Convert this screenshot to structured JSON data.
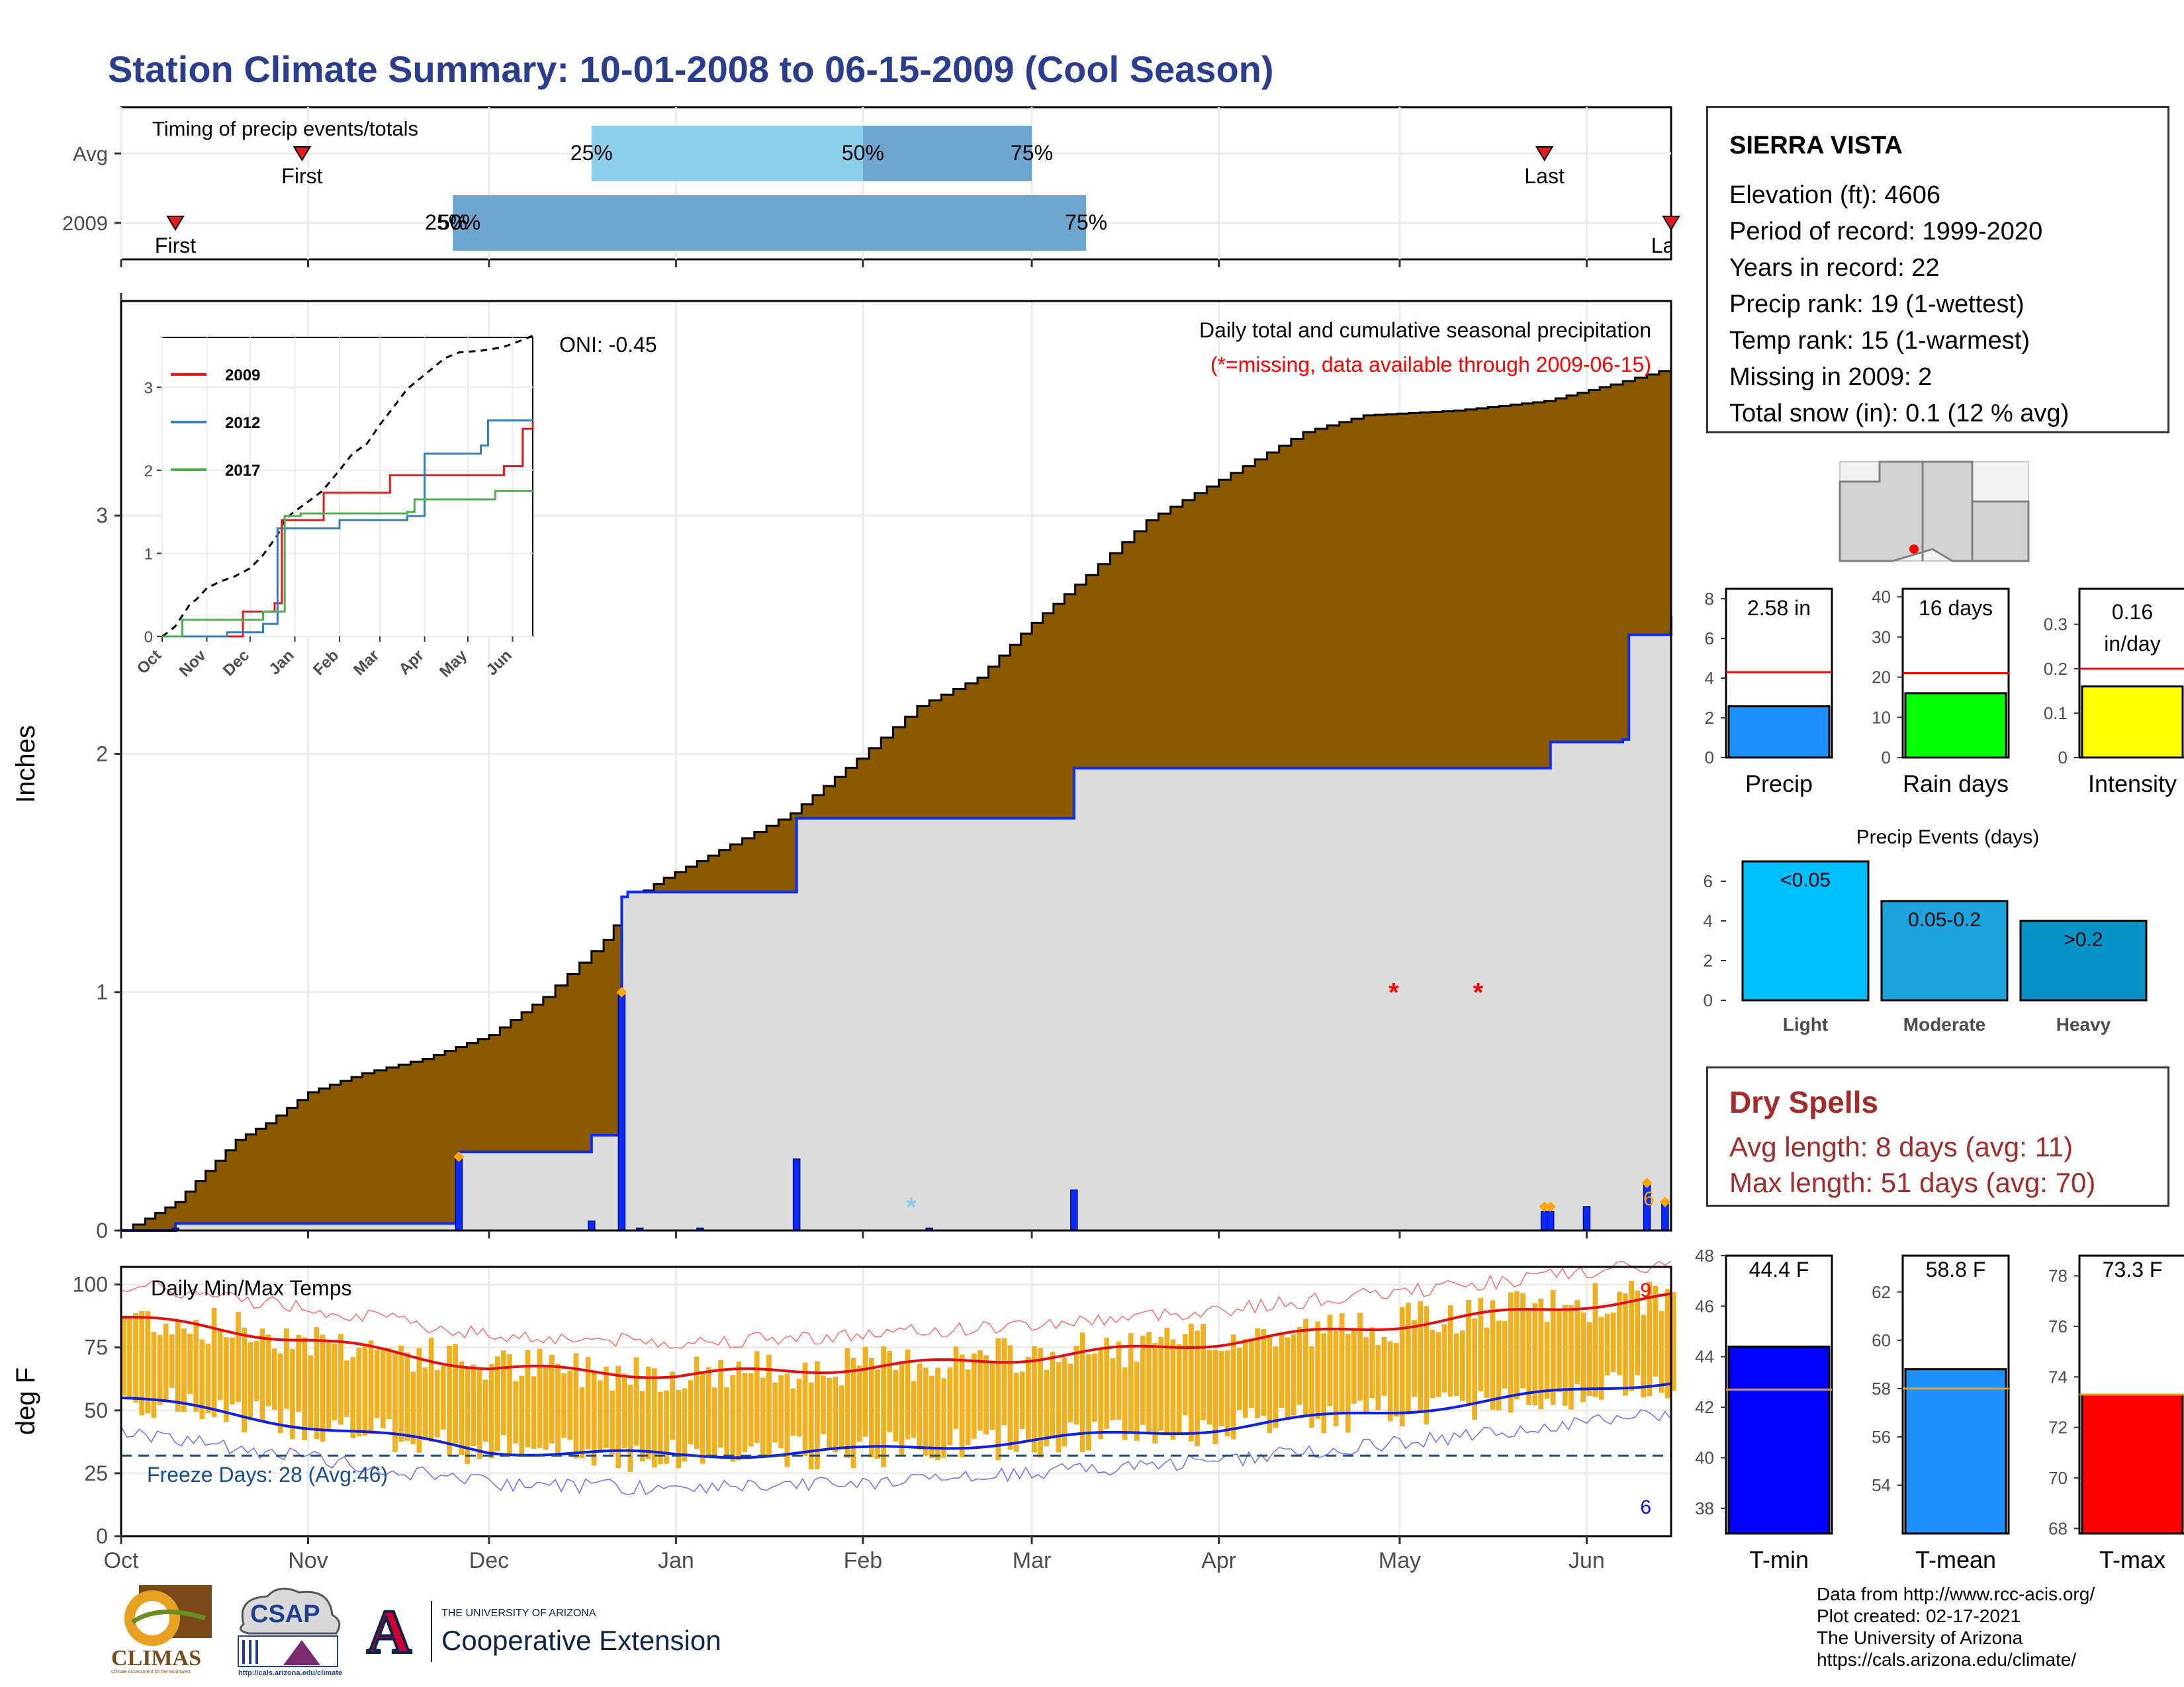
{
  "title": "Station Climate Summary: 10-01-2008 to 06-15-2009 (Cool Season)",
  "colors": {
    "title": "#2a3d8f",
    "cumulative_fill": "#8b5a00",
    "avg_fill": "#dcdcdc",
    "daily_bar": "#0a2bff",
    "temp_bar": "#f0b020",
    "tmax_line": "#e01010",
    "tmin_line": "#1020e0",
    "dry_text": "#a52a2a",
    "percentile_light": "#8ccfeb",
    "percentile_dark": "#6fa6cf"
  },
  "station": {
    "name": "SIERRA VISTA",
    "lines": [
      "Elevation (ft): 4606",
      "Period of record: 1999-2020",
      "Years in record: 22",
      "Precip rank: 19 (1-wettest)",
      "Temp rank: 15 (1-warmest)",
      "Missing in 2009: 2",
      "Total snow (in): 0.1 (12 % avg)"
    ]
  },
  "dry_spells": {
    "title": "Dry Spells",
    "lines": [
      "Avg length: 8 days (avg: 11)",
      "Max length: 51 days (avg: 70)"
    ]
  },
  "credits": [
    "Data from http://www.rcc-acis.org/",
    "Plot created: 02-17-2021",
    "The University of Arizona",
    "https://cals.arizona.edu/climate/"
  ],
  "logos": {
    "climas": "CLIMAS",
    "climas_sub": "Climate Assessment for the Southwest",
    "csap": "CSAP",
    "csap_url": "http://cals.arizona.edu/climate",
    "ua_letter": "A",
    "ua_top": "THE UNIVERSITY OF ARIZONA",
    "ua_main": "Cooperative Extension"
  },
  "chart_data": [
    {
      "id": "timing",
      "type": "bar",
      "title": "Timing of precip events/totals",
      "categories": [
        "Avg",
        "2009"
      ],
      "x_range": [
        "10-01",
        "06-15"
      ],
      "month_ticks": [
        "Oct",
        "Nov",
        "Dec",
        "Jan",
        "Feb",
        "Mar",
        "Apr",
        "May",
        "Jun"
      ],
      "rows": [
        {
          "label": "Avg",
          "first": "10-31",
          "last": "05-25",
          "p25": "12-18",
          "p50": "02-01",
          "p75": "03-01",
          "labels": [
            "25%",
            "50%",
            "75%"
          ],
          "first_label": "First",
          "last_label": "Last"
        },
        {
          "label": "2009",
          "first": "10-10",
          "last": "06-15",
          "p25": "11-25",
          "p50": "11-25",
          "p75": "03-10",
          "labels": [
            "25%",
            "50%",
            "75%"
          ],
          "first_label": "First",
          "last_label": "Last"
        }
      ]
    },
    {
      "id": "precip",
      "type": "area",
      "title": "Daily total and cumulative seasonal precipitation",
      "subtitle": "(*=missing, data available through 2009-06-15)",
      "annotation": "ONI: -0.45",
      "ylabel": "Inches",
      "ylim": [
        0,
        3.9
      ],
      "yticks": [
        0,
        1,
        2,
        3
      ],
      "month_ticks": [
        "Oct",
        "Nov",
        "Dec",
        "Jan",
        "Feb",
        "Mar",
        "Apr",
        "May",
        "Jun"
      ],
      "cumulative_avg": [
        [
          "10-01",
          0.0
        ],
        [
          "10-05",
          0.05
        ],
        [
          "10-10",
          0.12
        ],
        [
          "10-15",
          0.25
        ],
        [
          "10-20",
          0.38
        ],
        [
          "10-25",
          0.45
        ],
        [
          "11-01",
          0.58
        ],
        [
          "11-10",
          0.66
        ],
        [
          "11-20",
          0.72
        ],
        [
          "12-01",
          0.82
        ],
        [
          "12-10",
          0.98
        ],
        [
          "12-20",
          1.22
        ],
        [
          "12-25",
          1.4
        ],
        [
          "12-30",
          1.48
        ],
        [
          "01-10",
          1.62
        ],
        [
          "01-20",
          1.75
        ],
        [
          "01-31",
          1.98
        ],
        [
          "02-10",
          2.2
        ],
        [
          "02-20",
          2.32
        ],
        [
          "03-01",
          2.55
        ],
        [
          "03-10",
          2.75
        ],
        [
          "03-20",
          2.98
        ],
        [
          "04-01",
          3.15
        ],
        [
          "04-15",
          3.35
        ],
        [
          "04-25",
          3.42
        ],
        [
          "05-10",
          3.44
        ],
        [
          "05-25",
          3.48
        ],
        [
          "06-05",
          3.55
        ],
        [
          "06-15",
          3.62
        ]
      ],
      "cumulative_2009": [
        [
          "10-01",
          0.0
        ],
        [
          "10-10",
          0.03
        ],
        [
          "11-25",
          0.03
        ],
        [
          "11-26",
          0.33
        ],
        [
          "12-18",
          0.4
        ],
        [
          "12-23",
          1.4
        ],
        [
          "12-24",
          1.42
        ],
        [
          "01-20",
          1.42
        ],
        [
          "01-21",
          1.73
        ],
        [
          "03-07",
          1.73
        ],
        [
          "03-08",
          1.94
        ],
        [
          "05-25",
          1.94
        ],
        [
          "05-26",
          2.05
        ],
        [
          "06-07",
          2.06
        ],
        [
          "06-08",
          2.5
        ],
        [
          "06-15",
          2.58
        ]
      ],
      "daily_2009": [
        [
          "10-10",
          0.01
        ],
        [
          "11-26",
          0.3
        ],
        [
          "12-18",
          0.04
        ],
        [
          "12-23",
          1.0
        ],
        [
          "12-26",
          0.01
        ],
        [
          "01-05",
          0.01
        ],
        [
          "01-21",
          0.3
        ],
        [
          "02-12",
          0.01
        ],
        [
          "03-08",
          0.17
        ],
        [
          "05-25",
          0.08
        ],
        [
          "05-26",
          0.08
        ],
        [
          "06-01",
          0.1
        ],
        [
          "06-11",
          0.2
        ],
        [
          "06-14",
          0.12
        ]
      ],
      "missing_days": [
        "04-30",
        "05-14"
      ],
      "snow_days": [
        "02-09"
      ],
      "inset": {
        "type": "line",
        "series": [
          {
            "name": "2009",
            "color": "#e41a1c",
            "points": [
              [
                "10-01",
                0
              ],
              [
                "11-26",
                0.3
              ],
              [
                "12-18",
                0.4
              ],
              [
                "12-23",
                1.4
              ],
              [
                "01-21",
                1.73
              ],
              [
                "03-08",
                1.94
              ],
              [
                "05-26",
                2.05
              ],
              [
                "06-08",
                2.5
              ],
              [
                "06-15",
                2.58
              ]
            ]
          },
          {
            "name": "2012",
            "color": "#377eb8",
            "points": [
              [
                "10-01",
                0
              ],
              [
                "11-15",
                0.05
              ],
              [
                "12-10",
                0.15
              ],
              [
                "12-20",
                1.3
              ],
              [
                "01-05",
                1.3
              ],
              [
                "02-01",
                1.4
              ],
              [
                "03-20",
                1.45
              ],
              [
                "04-01",
                2.2
              ],
              [
                "05-10",
                2.3
              ],
              [
                "05-15",
                2.6
              ],
              [
                "06-15",
                2.6
              ]
            ]
          },
          {
            "name": "2017",
            "color": "#4daf4a",
            "points": [
              [
                "10-01",
                0
              ],
              [
                "10-15",
                0.2
              ],
              [
                "12-10",
                0.3
              ],
              [
                "12-25",
                1.45
              ],
              [
                "01-05",
                1.48
              ],
              [
                "03-20",
                1.5
              ],
              [
                "03-25",
                1.65
              ],
              [
                "05-20",
                1.75
              ],
              [
                "06-15",
                1.75
              ]
            ]
          }
        ],
        "yticks": [
          0,
          1,
          2,
          3
        ],
        "month_ticks": [
          "Oct",
          "Nov",
          "Dec",
          "Jan",
          "Feb",
          "Mar",
          "Apr",
          "May",
          "Jun"
        ]
      }
    },
    {
      "id": "temps",
      "type": "line",
      "title": "Daily Min/Max Temps",
      "ylabel": "deg F",
      "ylim": [
        0,
        107
      ],
      "yticks": [
        0,
        25,
        50,
        75,
        100
      ],
      "month_ticks": [
        "Oct",
        "Nov",
        "Dec",
        "Jan",
        "Feb",
        "Mar",
        "Apr",
        "May",
        "Jun"
      ],
      "freeze_line": 32,
      "freeze_label": "Freeze Days: 28 (Avg:46)",
      "right_label_max": "9",
      "right_label_min": "6",
      "avg_tmax": [
        [
          "10-01",
          87
        ],
        [
          "11-01",
          78
        ],
        [
          "12-01",
          67
        ],
        [
          "01-01",
          64
        ],
        [
          "02-01",
          67
        ],
        [
          "03-01",
          71
        ],
        [
          "04-01",
          77
        ],
        [
          "05-01",
          84
        ],
        [
          "06-01",
          92
        ],
        [
          "06-15",
          95
        ]
      ],
      "avg_tmin": [
        [
          "10-01",
          55
        ],
        [
          "11-01",
          44
        ],
        [
          "12-01",
          34
        ],
        [
          "01-01",
          32
        ],
        [
          "02-01",
          34
        ],
        [
          "03-01",
          38
        ],
        [
          "04-01",
          43
        ],
        [
          "05-01",
          50
        ],
        [
          "06-01",
          58
        ],
        [
          "06-15",
          62
        ]
      ]
    },
    {
      "id": "precip_summary",
      "type": "bar",
      "panels": [
        {
          "label": "Precip",
          "value": 2.58,
          "value_text": "2.58 in",
          "avg": 4.3,
          "ylim": [
            0,
            8.5
          ],
          "yticks": [
            0,
            2,
            4,
            6,
            8
          ],
          "color": "#1e90ff"
        },
        {
          "label": "Rain days",
          "value": 16,
          "value_text": "16 days",
          "avg": 21,
          "ylim": [
            0,
            42
          ],
          "yticks": [
            0,
            10,
            20,
            30,
            40
          ],
          "color": "#00ff00"
        },
        {
          "label": "Intensity",
          "value": 0.16,
          "value_text": "0.16 in/day",
          "avg": 0.2,
          "ylim": [
            0,
            0.38
          ],
          "yticks": [
            0.0,
            0.1,
            0.2,
            0.3
          ],
          "color": "#ffff00"
        }
      ]
    },
    {
      "id": "precip_events",
      "type": "bar",
      "title": "Precip Events (days)",
      "categories": [
        "Light",
        "Moderate",
        "Heavy"
      ],
      "bar_labels": [
        "<0.05",
        "0.05-0.2",
        ">0.2"
      ],
      "values": [
        7,
        5,
        4
      ],
      "ylim": [
        0,
        7
      ],
      "yticks": [
        0,
        2,
        4,
        6
      ],
      "colors": [
        "#00bfff",
        "#1ca3dc",
        "#0994c8"
      ]
    },
    {
      "id": "temp_summary",
      "type": "bar",
      "panels": [
        {
          "label": "T-min",
          "value": 44.4,
          "value_text": "44.4 F",
          "avg": 42.7,
          "ylim": [
            37,
            48
          ],
          "yticks": [
            38,
            40,
            42,
            44,
            46,
            48
          ],
          "color": "#0000ff"
        },
        {
          "label": "T-mean",
          "value": 58.8,
          "value_text": "58.8 F",
          "avg": 58.0,
          "ylim": [
            52,
            63.5
          ],
          "yticks": [
            54,
            56,
            58,
            60,
            62
          ],
          "color": "#1e90ff"
        },
        {
          "label": "T-max",
          "value": 73.3,
          "value_text": "73.3 F",
          "avg": 73.3,
          "ylim": [
            67.8,
            78.8
          ],
          "yticks": [
            68,
            70,
            72,
            74,
            76,
            78
          ],
          "color": "#ff0000"
        }
      ]
    }
  ]
}
